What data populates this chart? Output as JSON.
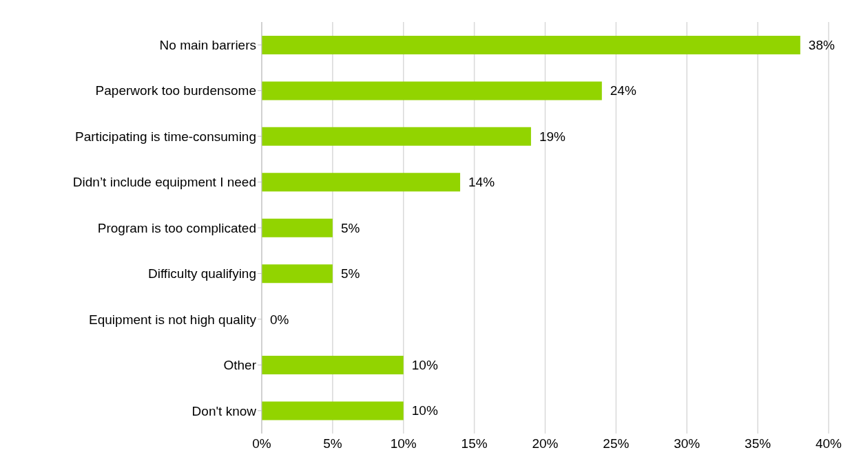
{
  "chart_data": {
    "type": "bar",
    "orientation": "horizontal",
    "categories": [
      "No main barriers",
      "Paperwork too burdensome",
      "Participating is time-consuming",
      "Didn’t include equipment I need",
      "Program is too complicated",
      "Difficulty qualifying",
      "Equipment is not high quality",
      "Other",
      "Don't know"
    ],
    "values": [
      38,
      24,
      19,
      14,
      5,
      5,
      0,
      10,
      10
    ],
    "value_labels": [
      "38%",
      "24%",
      "19%",
      "14%",
      "5%",
      "5%",
      "0%",
      "10%",
      "10%"
    ],
    "color": "#92d400",
    "xlim": [
      0,
      40
    ],
    "xticks": [
      {
        "value": 0,
        "label": "0%"
      },
      {
        "value": 5,
        "label": "5%"
      },
      {
        "value": 10,
        "label": "10%"
      },
      {
        "value": 15,
        "label": "15%"
      },
      {
        "value": 20,
        "label": "20%"
      },
      {
        "value": 25,
        "label": "25%"
      },
      {
        "value": 30,
        "label": "30%"
      },
      {
        "value": 35,
        "label": "35%"
      },
      {
        "value": 40,
        "label": "40%"
      }
    ],
    "grid": "x"
  }
}
